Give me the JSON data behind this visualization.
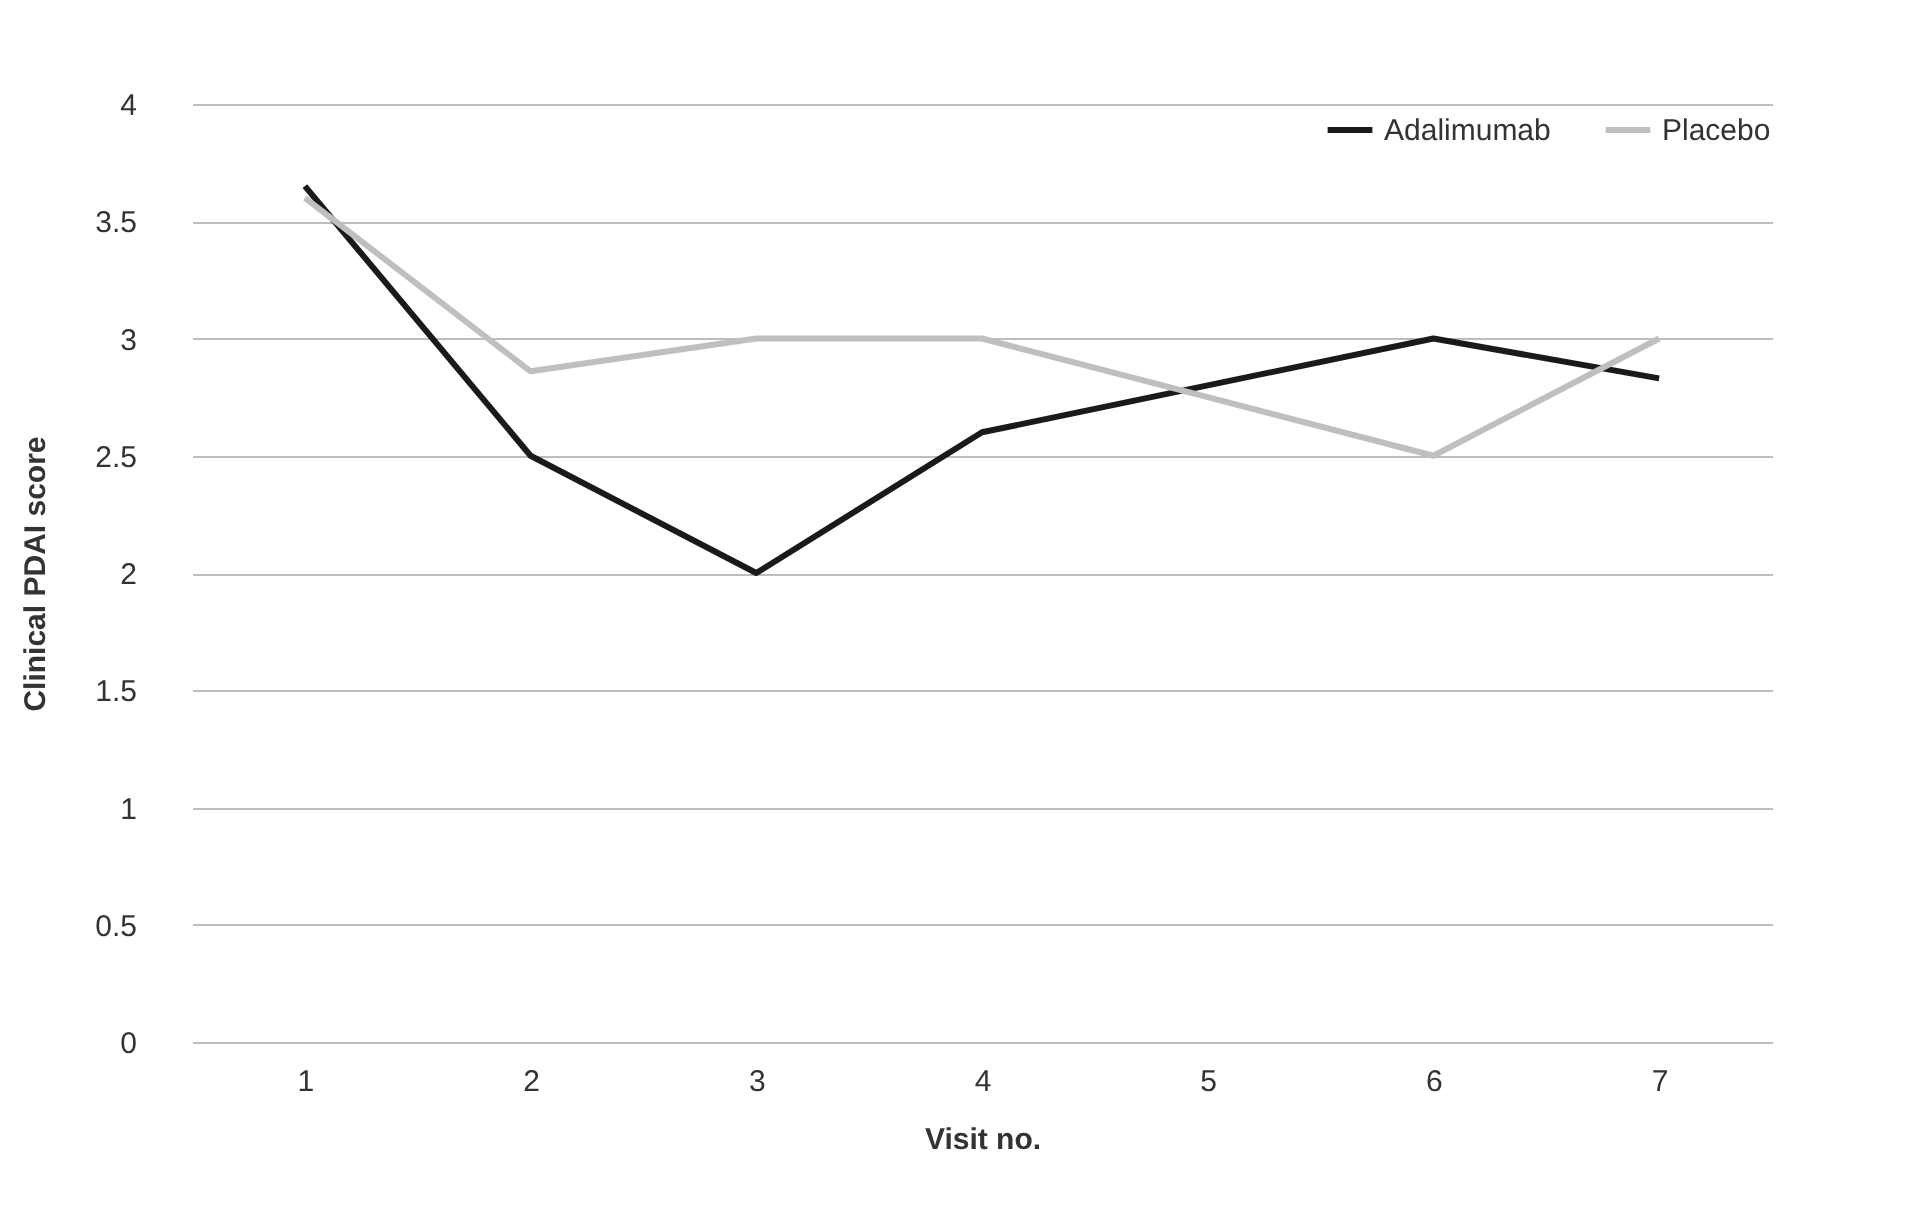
{
  "chart_data": {
    "type": "line",
    "xlabel": "Visit no.",
    "ylabel": "Clinical PDAI score",
    "categories": [
      "1",
      "2",
      "3",
      "4",
      "5",
      "6",
      "7"
    ],
    "series": [
      {
        "name": "Adalimumab",
        "color": "#1a1a1a",
        "values": [
          3.65,
          2.5,
          2.0,
          2.6,
          2.8,
          3.0,
          2.83
        ]
      },
      {
        "name": "Placebo",
        "color": "#bfbfbf",
        "values": [
          3.6,
          2.86,
          3.0,
          3.0,
          2.75,
          2.5,
          3.0
        ]
      }
    ],
    "ylim": [
      0,
      4
    ],
    "yticks": [
      0,
      0.5,
      1,
      1.5,
      2,
      2.5,
      3,
      3.5,
      4
    ],
    "grid": "y",
    "legend": "top right",
    "marker": "none",
    "line_style": "solid"
  }
}
